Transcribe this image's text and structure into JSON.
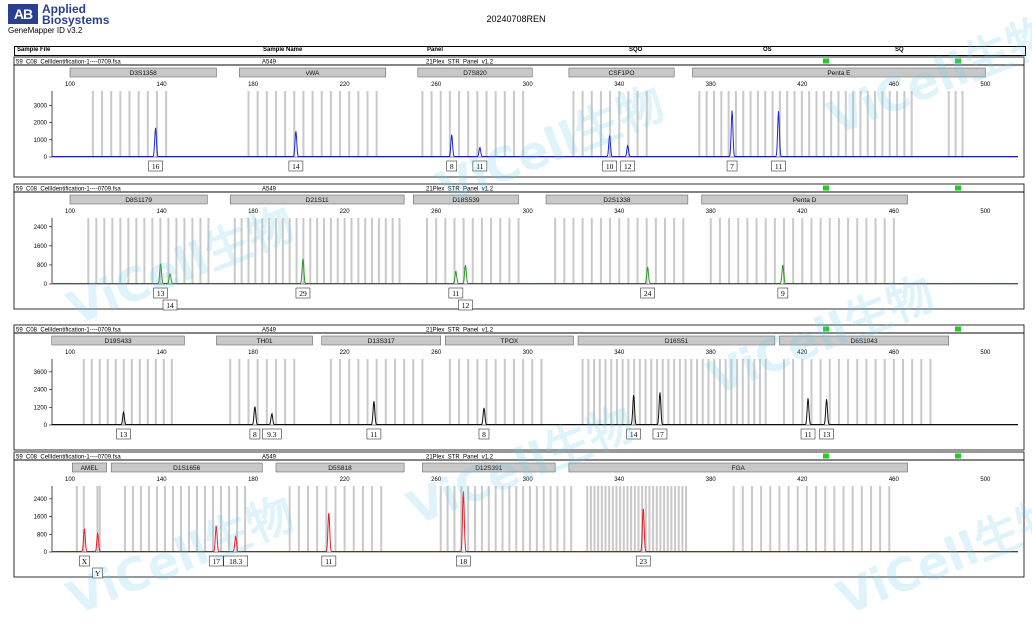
{
  "header": {
    "brand_line1": "Applied",
    "brand_line2": "Biosystems",
    "brand_mark": "AB",
    "app_version": "GeneMapper ID v3.2",
    "report_title": "20240708REN",
    "columns": [
      "Sample File",
      "Sample Name",
      "Panel",
      "SQO",
      "OS",
      "SQ"
    ]
  },
  "watermark": "ViCell生物",
  "colors": {
    "blue": "#1f2bd1",
    "green": "#2a9a25",
    "black": "#111111",
    "red": "#e0202a",
    "bin": "#c9c9c9",
    "marker": "#c8c8c8",
    "status_ok": "#22cc22"
  },
  "chart_data": [
    {
      "type": "line",
      "dye": "blue",
      "sample_file": "59_C08_CellIdentification-1----0709.fsa",
      "sample_name": "A549",
      "panel": "21Plex_STR_Panel_v1.2",
      "xlim": [
        100,
        510
      ],
      "ylim": [
        0,
        3600
      ],
      "x_ticks": [
        100,
        140,
        180,
        220,
        260,
        300,
        340,
        380,
        420,
        460,
        500
      ],
      "y_ticks": [
        0,
        1000,
        2000,
        3000
      ],
      "markers": [
        {
          "name": "D3S1358",
          "range": [
            100,
            164
          ]
        },
        {
          "name": "vWA",
          "range": [
            174,
            238
          ]
        },
        {
          "name": "D7S820",
          "range": [
            252,
            302
          ]
        },
        {
          "name": "CSF1PO",
          "range": [
            318,
            364
          ]
        },
        {
          "name": "Penta E",
          "range": [
            372,
            500
          ]
        }
      ],
      "bins": [
        [
          110,
          145,
          4
        ],
        [
          178,
          235,
          4
        ],
        [
          254,
          300,
          4
        ],
        [
          320,
          352,
          4
        ],
        [
          375,
          470,
          3.2
        ],
        [
          484,
          490,
          3
        ]
      ],
      "peaks": [
        {
          "x": 137.4,
          "height": 1700,
          "label": "16"
        },
        {
          "x": 198.7,
          "height": 1500,
          "label": "14"
        },
        {
          "x": 266.8,
          "height": 1300,
          "label": "8"
        },
        {
          "x": 279.1,
          "height": 550,
          "label": "11"
        },
        {
          "x": 335.8,
          "height": 1250,
          "label": "10"
        },
        {
          "x": 343.7,
          "height": 650,
          "label": "12"
        },
        {
          "x": 389.3,
          "height": 2700,
          "label": "7"
        },
        {
          "x": 409.6,
          "height": 2650,
          "label": "11"
        }
      ]
    },
    {
      "type": "line",
      "dye": "green",
      "sample_file": "59_C08_CellIdentification-1----0709.fsa",
      "sample_name": "A549",
      "panel": "21Plex_STR_Panel_v1.2",
      "xlim": [
        100,
        510
      ],
      "ylim": [
        0,
        2600
      ],
      "x_ticks": [
        100,
        140,
        180,
        220,
        260,
        300,
        340,
        380,
        420,
        460,
        500
      ],
      "y_ticks": [
        0,
        800,
        1600,
        2400
      ],
      "markers": [
        {
          "name": "D8S1179",
          "range": [
            100,
            160
          ]
        },
        {
          "name": "D21S11",
          "range": [
            170,
            246
          ]
        },
        {
          "name": "D18S539",
          "range": [
            250,
            296
          ]
        },
        {
          "name": "D2S1338",
          "range": [
            308,
            370
          ]
        },
        {
          "name": "Penta D",
          "range": [
            376,
            466
          ]
        }
      ],
      "bins": [
        [
          108,
          162,
          3.5
        ],
        [
          172,
          244,
          3
        ],
        [
          256,
          296,
          4
        ],
        [
          312,
          368,
          4
        ],
        [
          380,
          462,
          4
        ]
      ],
      "peaks": [
        {
          "x": 139.6,
          "height": 850,
          "label": "13"
        },
        {
          "x": 143.7,
          "height": 420,
          "label": "14"
        },
        {
          "x": 201.8,
          "height": 1050,
          "label": "29"
        },
        {
          "x": 268.6,
          "height": 520,
          "label": "11"
        },
        {
          "x": 272.8,
          "height": 780,
          "label": "12"
        },
        {
          "x": 352.4,
          "height": 700,
          "label": "24"
        },
        {
          "x": 411.5,
          "height": 800,
          "label": "9"
        }
      ]
    },
    {
      "type": "line",
      "dye": "black",
      "sample_file": "59_C08_CellIdentification-1----0709.fsa",
      "sample_name": "A549",
      "panel": "21Plex_STR_Panel_v1.2",
      "xlim": [
        100,
        510
      ],
      "ylim": [
        0,
        4200
      ],
      "x_ticks": [
        100,
        140,
        180,
        220,
        260,
        300,
        340,
        380,
        420,
        460,
        500
      ],
      "y_ticks": [
        0,
        1200,
        2400,
        3600
      ],
      "markers": [
        {
          "name": "D19S433",
          "range": [
            92,
            150
          ]
        },
        {
          "name": "TH01",
          "range": [
            164,
            206
          ]
        },
        {
          "name": "D13S317",
          "range": [
            210,
            262
          ]
        },
        {
          "name": "TPOX",
          "range": [
            264,
            320
          ]
        },
        {
          "name": "D16S51",
          "range": [
            322,
            408
          ]
        },
        {
          "name": "D6S1043",
          "range": [
            410,
            484
          ]
        }
      ],
      "bins": [
        [
          106,
          146,
          3.5
        ],
        [
          170,
          200,
          4
        ],
        [
          214,
          256,
          4
        ],
        [
          266,
          306,
          4
        ],
        [
          324,
          404,
          2.5
        ],
        [
          412,
          476,
          4
        ]
      ],
      "peaks": [
        {
          "x": 123.4,
          "height": 850,
          "label": "13"
        },
        {
          "x": 180.8,
          "height": 1250,
          "label": "8"
        },
        {
          "x": 188.2,
          "height": 750,
          "label": "9.3"
        },
        {
          "x": 232.8,
          "height": 1600,
          "label": "11"
        },
        {
          "x": 280.9,
          "height": 1150,
          "label": "8"
        },
        {
          "x": 346.3,
          "height": 2050,
          "label": "14"
        },
        {
          "x": 357.8,
          "height": 2200,
          "label": "17"
        },
        {
          "x": 422.5,
          "height": 1800,
          "label": "11"
        },
        {
          "x": 430.6,
          "height": 1750,
          "label": "13"
        }
      ]
    },
    {
      "type": "line",
      "dye": "red",
      "sample_file": "59_C08_CellIdentification-1----0709.fsa",
      "sample_name": "A549",
      "panel": "21Plex_STR_Panel_v1.2",
      "xlim": [
        100,
        510
      ],
      "ylim": [
        0,
        2800
      ],
      "x_ticks": [
        100,
        140,
        180,
        220,
        260,
        300,
        340,
        380,
        420,
        460,
        500
      ],
      "y_ticks": [
        0,
        800,
        1600,
        2400
      ],
      "markers": [
        {
          "name": "AMEL",
          "range": [
            101,
            116
          ]
        },
        {
          "name": "D1S1656",
          "range": [
            118,
            184
          ]
        },
        {
          "name": "D5S818",
          "range": [
            190,
            246
          ]
        },
        {
          "name": "D12S391",
          "range": [
            254,
            312
          ]
        },
        {
          "name": "FGA",
          "range": [
            318,
            466
          ]
        }
      ],
      "bins": [
        [
          103,
          106,
          3
        ],
        [
          112,
          113,
          1
        ],
        [
          124,
          178,
          3.5
        ],
        [
          196,
          236,
          4
        ],
        [
          262,
          320,
          3
        ],
        [
          326,
          370,
          1.6
        ],
        [
          390,
          460,
          4
        ]
      ],
      "peaks": [
        {
          "x": 106.3,
          "height": 1050,
          "label": "X"
        },
        {
          "x": 112.1,
          "height": 850,
          "label": "Y"
        },
        {
          "x": 163.9,
          "height": 1200,
          "label": "17"
        },
        {
          "x": 172.4,
          "height": 700,
          "label": "18.3"
        },
        {
          "x": 213.1,
          "height": 1800,
          "label": "11"
        },
        {
          "x": 271.9,
          "height": 2750,
          "label": "18"
        },
        {
          "x": 350.5,
          "height": 2000,
          "label": "23"
        }
      ]
    }
  ]
}
